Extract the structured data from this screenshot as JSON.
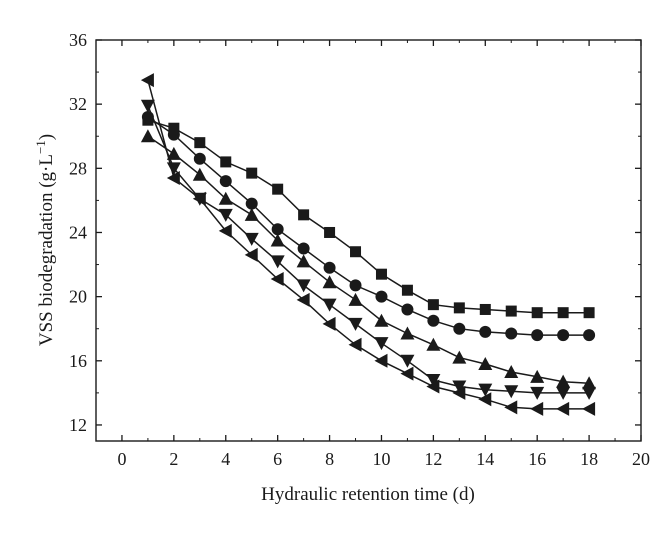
{
  "chart_data": {
    "type": "line",
    "title": "",
    "xlabel": "Hydraulic retention time (d)",
    "ylabel": "VSS biodegradation (g·L",
    "ylabel_sup": "−1",
    "ylabel_close": ")",
    "xlim": [
      -1,
      20
    ],
    "ylim": [
      11,
      36
    ],
    "xticks": [
      0,
      2,
      4,
      6,
      8,
      10,
      12,
      14,
      16,
      18,
      20
    ],
    "yticks": [
      12,
      16,
      20,
      24,
      28,
      32,
      36
    ],
    "grid": false,
    "legend": "none",
    "x": [
      1,
      2,
      3,
      4,
      5,
      6,
      7,
      8,
      9,
      10,
      11,
      12,
      13,
      14,
      15,
      16,
      17,
      18
    ],
    "series": [
      {
        "marker": "square",
        "values": [
          31.0,
          30.5,
          29.6,
          28.4,
          27.7,
          26.7,
          25.1,
          24.0,
          22.8,
          21.4,
          20.4,
          19.5,
          19.3,
          19.2,
          19.1,
          19.0,
          19.0,
          19.0
        ]
      },
      {
        "marker": "circle",
        "values": [
          31.2,
          30.1,
          28.6,
          27.2,
          25.8,
          24.2,
          23.0,
          21.8,
          20.7,
          20.0,
          19.2,
          18.5,
          18.0,
          17.8,
          17.7,
          17.6,
          17.6,
          17.6
        ]
      },
      {
        "marker": "triangle-up",
        "values": [
          30.0,
          28.9,
          27.6,
          26.1,
          25.1,
          23.5,
          22.2,
          20.9,
          19.8,
          18.5,
          17.7,
          17.0,
          16.2,
          15.8,
          15.3,
          15.0,
          14.7,
          14.6
        ]
      },
      {
        "marker": "triangle-down",
        "values": [
          31.9,
          28.0,
          26.1,
          25.1,
          23.6,
          22.2,
          20.7,
          19.5,
          18.3,
          17.1,
          16.0,
          14.8,
          14.4,
          14.2,
          14.1,
          14.0,
          14.0,
          14.0
        ]
      },
      {
        "marker": "triangle-left",
        "values": [
          33.5,
          27.4,
          26.1,
          24.1,
          22.6,
          21.1,
          19.8,
          18.3,
          17.0,
          16.0,
          15.2,
          14.4,
          14.0,
          13.6,
          13.1,
          13.0,
          13.0,
          13.0
        ]
      }
    ]
  }
}
